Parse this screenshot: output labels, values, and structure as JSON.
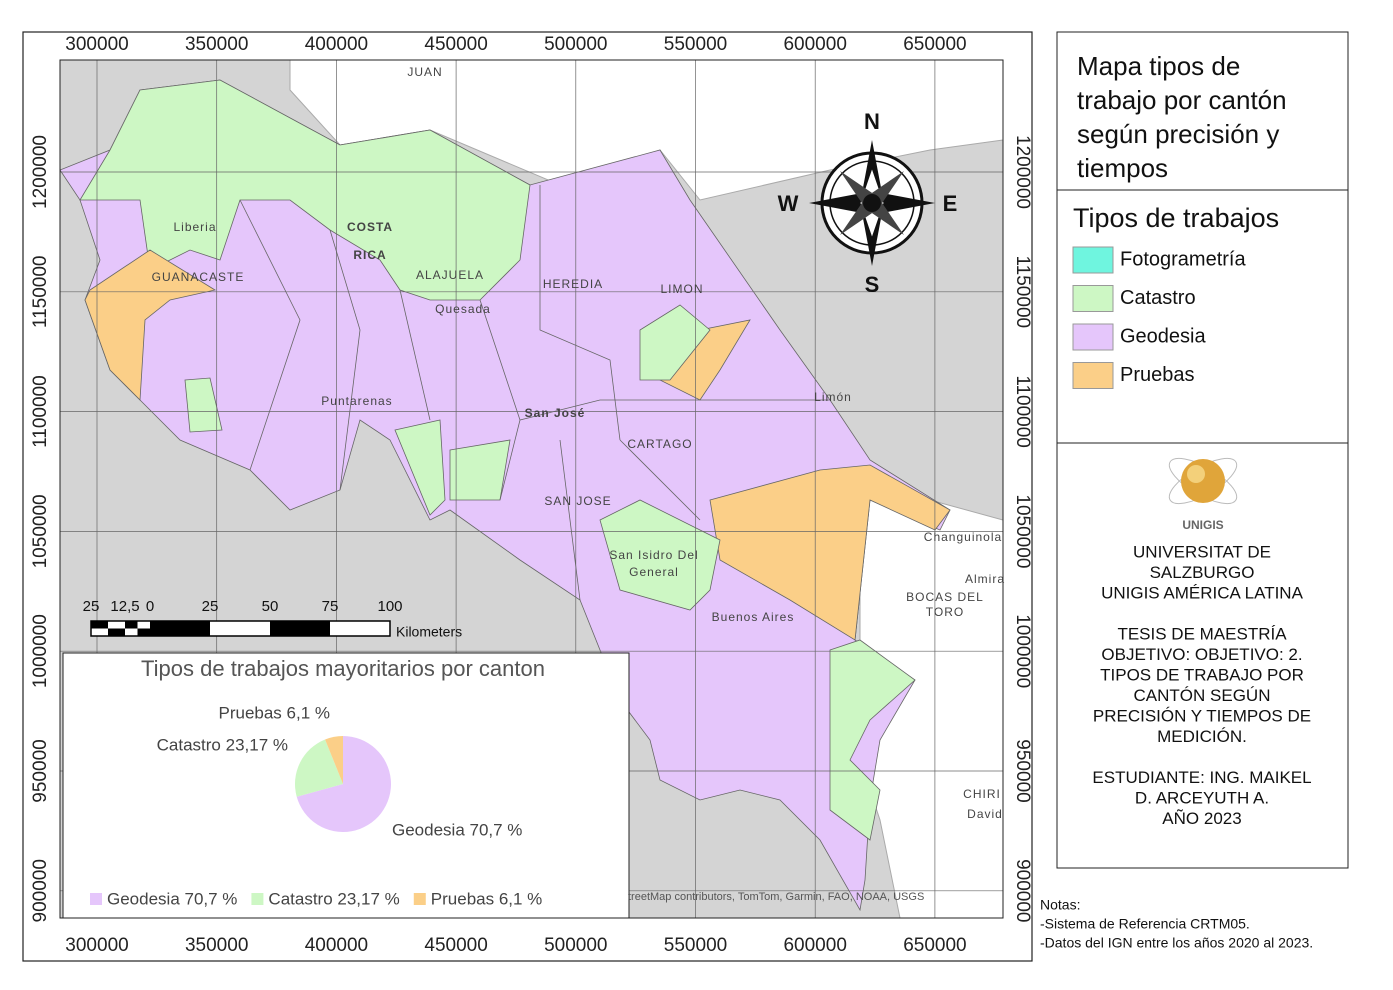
{
  "map": {
    "x_ticks": [
      300000,
      350000,
      400000,
      450000,
      500000,
      550000,
      600000,
      650000
    ],
    "y_ticks": [
      1200000,
      1150000,
      1100000,
      1050000,
      1000000,
      950000,
      900000
    ],
    "place_labels": [
      "JUAN",
      "COSTA",
      "RICA",
      "Liberia",
      "GUANACASTE",
      "ALAJUELA",
      "Quesada",
      "HEREDIA",
      "LIMON",
      "Limón",
      "Puntarenas",
      "San José",
      "CARTAGO",
      "SAN JOSE",
      "San Isidro Del",
      "General",
      "Buenos Aires",
      "Changuinola",
      "Almira",
      "BOCAS DEL",
      "TORO",
      "CHIRI",
      "David"
    ],
    "attribution": "treetMap contributors, TomTom, Garmin, FAO, NOAA, USGS",
    "compass": {
      "north": "N",
      "east": "E",
      "south": "S",
      "west": "W"
    },
    "scale_bar": {
      "labels": [
        "25",
        "12,5",
        "0",
        "25",
        "50",
        "75",
        "100"
      ],
      "unit": "Kilometers"
    }
  },
  "title_lines": [
    "Mapa tipos de",
    "trabajo por cantón",
    "según precisión y",
    "tiempos"
  ],
  "legend": {
    "title": "Tipos de trabajos",
    "items": [
      {
        "label": "Fotogrametría",
        "color": "#6ff5df"
      },
      {
        "label": "Catastro",
        "color": "#cdf7c4"
      },
      {
        "label": "Geodesia",
        "color": "#e5c6fb"
      },
      {
        "label": "Pruebas",
        "color": "#fbcf88"
      }
    ]
  },
  "logo_text": "UNIGIS",
  "info_lines": [
    "UNIVERSITAT DE",
    "SALZBURGO",
    "UNIGIS AMÉRICA LATINA",
    "",
    "TESIS DE MAESTRÍA",
    "OBJETIVO: OBJETIVO: 2.",
    "TIPOS DE TRABAJO POR",
    "CANTÓN SEGÚN",
    "PRECISIÓN Y TIEMPOS DE",
    "MEDICIÓN.",
    "",
    "ESTUDIANTE: ING. MAIKEL",
    "D. ARCEYUTH A.",
    "AÑO 2023"
  ],
  "notes": [
    "Notas:",
    "-Sistema de Referencia CRTM05.",
    "-Datos del IGN entre los años 2020 al 2023."
  ],
  "chart_data": {
    "type": "pie",
    "title": "Tipos de trabajos mayoritarios por canton",
    "categories": [
      "Geodesia",
      "Catastro",
      "Pruebas"
    ],
    "values": [
      70.7,
      23.17,
      6.1
    ],
    "value_labels": [
      "Geodesia 70,7 %",
      "Catastro 23,17 %",
      "Pruebas 6,1 %"
    ],
    "colors": [
      "#e5c6fb",
      "#cdf7c4",
      "#fbcf88"
    ]
  }
}
